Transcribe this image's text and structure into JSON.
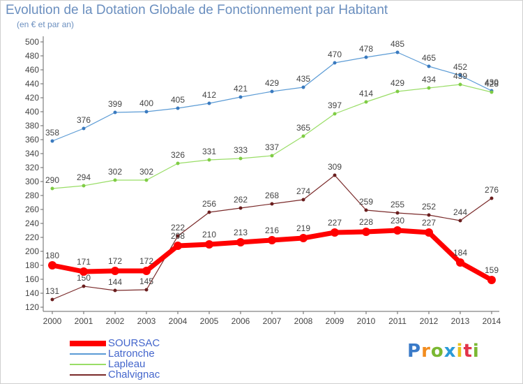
{
  "header": {
    "title": "Evolution de la Dotation Globale de Fonctionnement par Habitant",
    "subtitle": "(en € et par an)"
  },
  "logo": {
    "text": "Proxiti"
  },
  "colors": {
    "axis": "#666666",
    "grid": "#d9d9d9",
    "label": "#444444",
    "logo_p": "#3a7ac8",
    "logo_r": "#f28c1e",
    "logo_o": "#7ab832",
    "logo_x": "#2a9ad8",
    "logo_i": "#e8c21e",
    "logo_t": "#e2334a",
    "logo_i2": "#7ab832"
  },
  "chart_data": {
    "type": "line",
    "title": "Evolution de la Dotation Globale de Fonctionnement par Habitant",
    "subtitle": "(en € et par an)",
    "xlabel": "",
    "ylabel": "",
    "x": [
      "2000",
      "2001",
      "2002",
      "2003",
      "2004",
      "2005",
      "2006",
      "2007",
      "2008",
      "2009",
      "2010",
      "2011",
      "2012",
      "2013",
      "2014"
    ],
    "ylim": [
      120,
      500
    ],
    "yticks": [
      120,
      140,
      160,
      180,
      200,
      220,
      240,
      260,
      280,
      300,
      320,
      340,
      360,
      380,
      400,
      420,
      440,
      460,
      480,
      500
    ],
    "grid": false,
    "legend": "bottom-left",
    "series": [
      {
        "name": "Latronche",
        "color": "#5b9bd5",
        "point_color": "#3a7abf",
        "line_width": 1.2,
        "marker": 2.5,
        "values": [
          358,
          376,
          399,
          400,
          405,
          412,
          421,
          429,
          435,
          470,
          478,
          485,
          465,
          452,
          430
        ]
      },
      {
        "name": "Lapleau",
        "color": "#99dd66",
        "point_color": "#7fcc44",
        "line_width": 1.2,
        "marker": 2.5,
        "values": [
          290,
          294,
          302,
          302,
          326,
          331,
          333,
          337,
          365,
          397,
          414,
          429,
          434,
          439,
          428
        ]
      },
      {
        "name": "Chalvignac",
        "color": "#7a2a2a",
        "point_color": "#6a1e1e",
        "line_width": 1.2,
        "marker": 2.5,
        "values": [
          131,
          150,
          144,
          145,
          222,
          256,
          262,
          268,
          274,
          309,
          259,
          255,
          252,
          244,
          276
        ]
      },
      {
        "name": "SOURSAC",
        "color": "#ff0000",
        "point_color": "#ff0000",
        "line_width": 7,
        "marker": 6,
        "values": [
          180,
          171,
          172,
          172,
          208,
          210,
          213,
          216,
          219,
          227,
          228,
          230,
          227,
          184,
          159
        ]
      }
    ]
  }
}
